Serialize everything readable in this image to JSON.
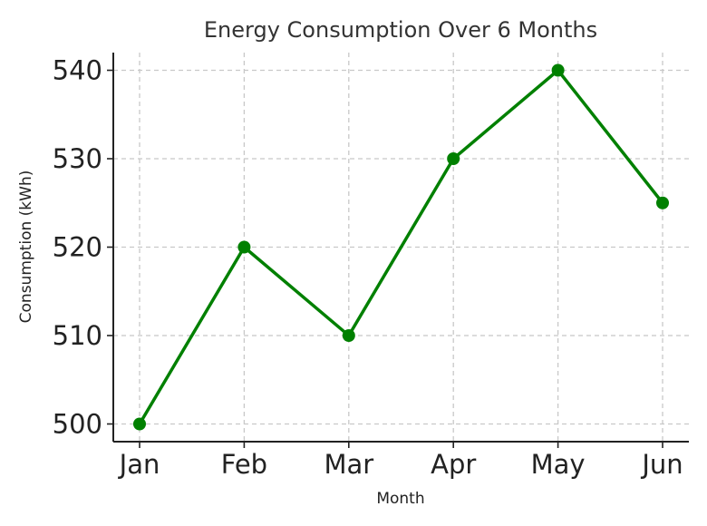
{
  "chart_data": {
    "type": "line",
    "title": "Energy Consumption Over 6 Months",
    "xlabel": "Month",
    "ylabel": "Consumption (kWh)",
    "categories": [
      "Jan",
      "Feb",
      "Mar",
      "Apr",
      "May",
      "Jun"
    ],
    "series": [
      {
        "name": "Consumption",
        "values": [
          500,
          520,
          510,
          530,
          540,
          525
        ],
        "color": "#008000",
        "marker": "circle"
      }
    ],
    "ylim": [
      498,
      542
    ],
    "yticks": [
      500,
      510,
      520,
      530,
      540
    ],
    "grid": true,
    "legend": "none"
  }
}
